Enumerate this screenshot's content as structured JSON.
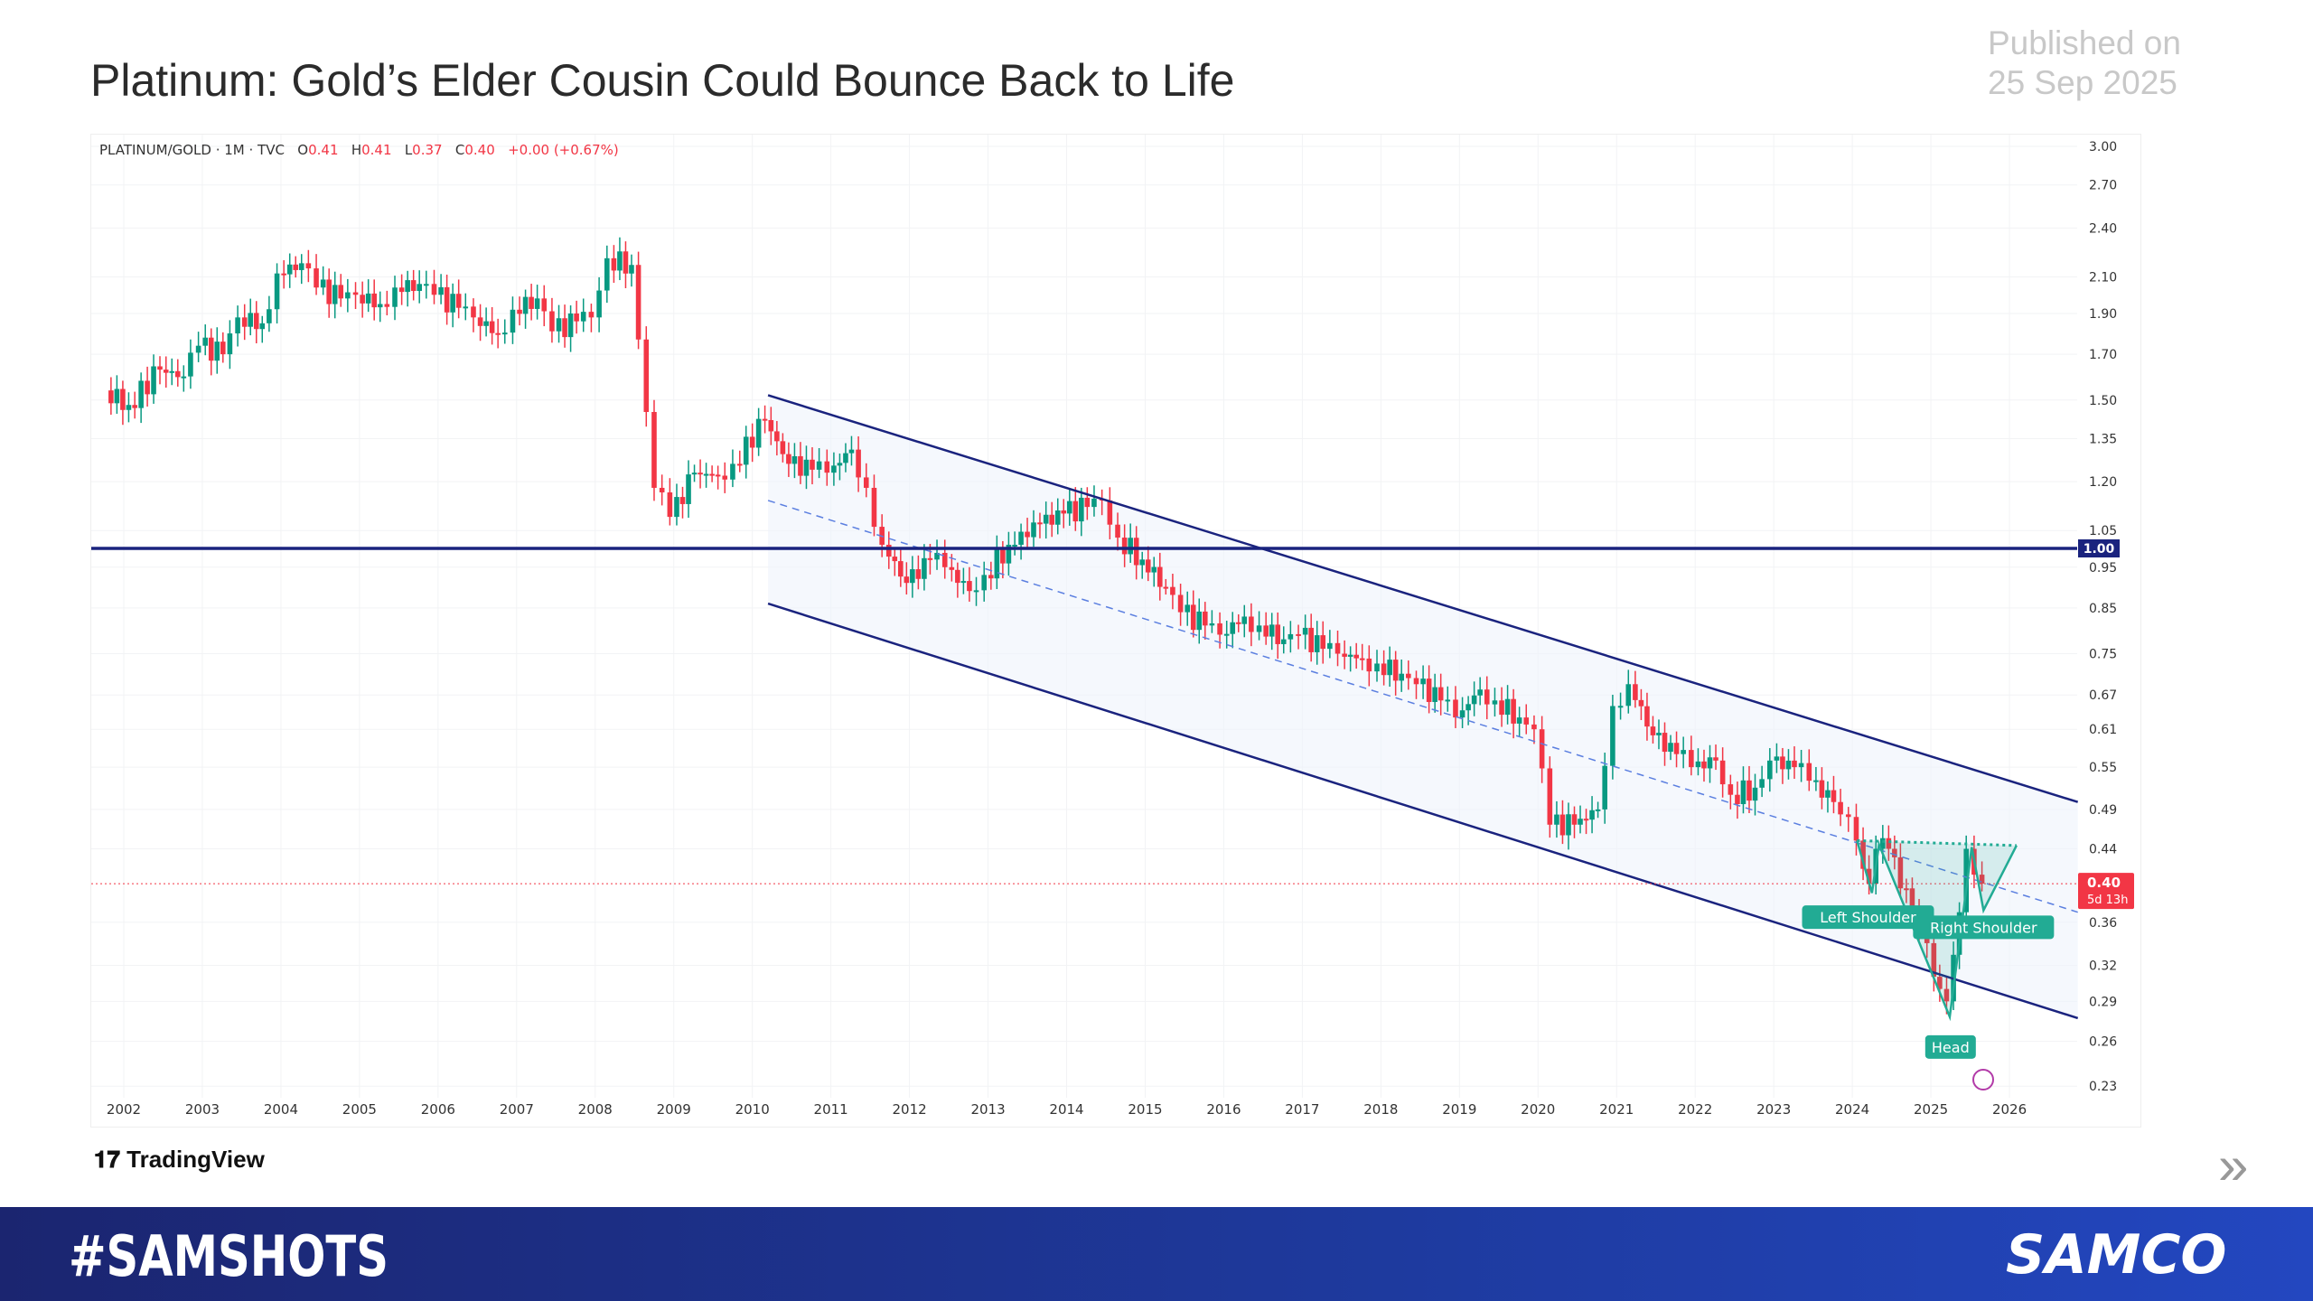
{
  "header": {
    "title": "Platinum: Gold’s Elder Cousin Could Bounce Back to Life",
    "published_line1": "Published on",
    "published_line2": "25 Sep 2025"
  },
  "legend": {
    "symbol": "PLATINUM/GOLD · 1M · TVC",
    "o_label": "O",
    "o": "0.41",
    "h_label": "H",
    "h": "0.41",
    "l_label": "L",
    "l": "0.37",
    "c_label": "C",
    "c": "0.40",
    "change": "+0.00 (+0.67%)"
  },
  "footer": {
    "tradingview": "TradingView",
    "hashtag": "#SAMSHOTS",
    "brand": "SAMCO"
  },
  "colors": {
    "up": "#089981",
    "down": "#f23645",
    "channel": "#1a237e",
    "midline": "#5b7fe0",
    "pattern": "#22ab94",
    "price_label": "#f23645"
  },
  "chart_data": {
    "type": "candlestick",
    "yscale": "log",
    "ylim": [
      0.23,
      3.0
    ],
    "xlim": [
      2001.6,
      2027.0
    ],
    "y_ticks": [
      "3.00",
      "2.70",
      "2.40",
      "2.10",
      "1.90",
      "1.70",
      "1.50",
      "1.35",
      "1.20",
      "1.05",
      "0.95",
      "0.85",
      "0.75",
      "0.67",
      "0.61",
      "0.55",
      "0.49",
      "0.44",
      "0.36",
      "0.32",
      "0.29",
      "0.26",
      "0.23"
    ],
    "x_ticks": [
      "2002",
      "2003",
      "2004",
      "2005",
      "2006",
      "2007",
      "2008",
      "2009",
      "2010",
      "2011",
      "2012",
      "2013",
      "2014",
      "2015",
      "2016",
      "2017",
      "2018",
      "2019",
      "2020",
      "2021",
      "2022",
      "2023",
      "2024",
      "2025",
      "2026"
    ],
    "grid": true,
    "closes": [
      [
        2001.8,
        1.54
      ],
      [
        2002.1,
        1.48
      ],
      [
        2002.5,
        1.63
      ],
      [
        2002.8,
        1.6
      ],
      [
        2003.0,
        1.74
      ],
      [
        2003.3,
        1.7
      ],
      [
        2003.5,
        1.88
      ],
      [
        2003.8,
        1.85
      ],
      [
        2004.0,
        2.12
      ],
      [
        2004.3,
        2.18
      ],
      [
        2004.5,
        2.04
      ],
      [
        2004.8,
        1.98
      ],
      [
        2005.0,
        2.0
      ],
      [
        2005.3,
        1.95
      ],
      [
        2005.5,
        2.04
      ],
      [
        2005.8,
        2.06
      ],
      [
        2006.0,
        2.0
      ],
      [
        2006.3,
        1.93
      ],
      [
        2006.5,
        1.88
      ],
      [
        2006.8,
        1.8
      ],
      [
        2007.0,
        1.92
      ],
      [
        2007.3,
        1.98
      ],
      [
        2007.5,
        1.81
      ],
      [
        2007.8,
        1.86
      ],
      [
        2008.0,
        1.88
      ],
      [
        2008.2,
        2.21
      ],
      [
        2008.5,
        2.17
      ],
      [
        2008.6,
        1.77
      ],
      [
        2008.8,
        1.18
      ],
      [
        2009.0,
        1.09
      ],
      [
        2009.3,
        1.23
      ],
      [
        2009.6,
        1.22
      ],
      [
        2009.8,
        1.26
      ],
      [
        2010.2,
        1.42
      ],
      [
        2010.5,
        1.26
      ],
      [
        2010.8,
        1.24
      ],
      [
        2011.0,
        1.23
      ],
      [
        2011.3,
        1.31
      ],
      [
        2011.5,
        1.18
      ],
      [
        2011.7,
        1.01
      ],
      [
        2012.0,
        0.91
      ],
      [
        2012.3,
        0.97
      ],
      [
        2012.5,
        0.95
      ],
      [
        2012.8,
        0.89
      ],
      [
        2013.0,
        0.93
      ],
      [
        2013.3,
        1.01
      ],
      [
        2013.7,
        1.07
      ],
      [
        2014.0,
        1.1
      ],
      [
        2014.3,
        1.12
      ],
      [
        2014.5,
        1.14
      ],
      [
        2014.7,
        1.03
      ],
      [
        2015.0,
        0.97
      ],
      [
        2015.3,
        0.9
      ],
      [
        2015.5,
        0.84
      ],
      [
        2015.8,
        0.81
      ],
      [
        2016.0,
        0.79
      ],
      [
        2016.3,
        0.83
      ],
      [
        2016.5,
        0.81
      ],
      [
        2016.8,
        0.78
      ],
      [
        2017.0,
        0.79
      ],
      [
        2017.3,
        0.76
      ],
      [
        2017.5,
        0.75
      ],
      [
        2017.8,
        0.74
      ],
      [
        2018.0,
        0.73
      ],
      [
        2018.3,
        0.71
      ],
      [
        2018.5,
        0.69
      ],
      [
        2018.8,
        0.66
      ],
      [
        2019.0,
        0.63
      ],
      [
        2019.3,
        0.68
      ],
      [
        2019.5,
        0.66
      ],
      [
        2019.8,
        0.63
      ],
      [
        2020.0,
        0.61
      ],
      [
        2020.2,
        0.47
      ],
      [
        2020.5,
        0.47
      ],
      [
        2020.8,
        0.49
      ],
      [
        2021.0,
        0.65
      ],
      [
        2021.2,
        0.69
      ],
      [
        2021.5,
        0.6
      ],
      [
        2021.8,
        0.57
      ],
      [
        2022.0,
        0.55
      ],
      [
        2022.3,
        0.56
      ],
      [
        2022.5,
        0.51
      ],
      [
        2022.8,
        0.52
      ],
      [
        2023.0,
        0.56
      ],
      [
        2023.3,
        0.55
      ],
      [
        2023.5,
        0.53
      ],
      [
        2023.8,
        0.5
      ],
      [
        2024.0,
        0.48
      ],
      [
        2024.1,
        0.45
      ],
      [
        2024.25,
        0.4
      ],
      [
        2024.35,
        0.44
      ],
      [
        2024.5,
        0.44
      ],
      [
        2024.8,
        0.37
      ],
      [
        2025.0,
        0.34
      ],
      [
        2025.15,
        0.3
      ],
      [
        2025.25,
        0.29
      ],
      [
        2025.4,
        0.37
      ],
      [
        2025.5,
        0.44
      ],
      [
        2025.6,
        0.41
      ],
      [
        2025.7,
        0.4
      ]
    ],
    "current_price": {
      "value": "0.40",
      "countdown": "5d 13h"
    },
    "horizontal_level": {
      "value": 1.0,
      "label": "1.00"
    },
    "channel": {
      "start": 2010.2,
      "end": 2026.87,
      "upper": [
        1.52,
        0.5
      ],
      "mid": [
        1.14,
        0.37
      ],
      "lower": [
        0.86,
        0.277
      ]
    },
    "head_and_shoulders": {
      "points": [
        [
          2024.06,
          0.45
        ],
        [
          2024.25,
          0.39
        ],
        [
          2024.34,
          0.445
        ],
        [
          2025.24,
          0.278
        ],
        [
          2025.52,
          0.442
        ],
        [
          2025.67,
          0.372
        ],
        [
          2026.09,
          0.444
        ]
      ],
      "neckline": [
        [
          2024.06,
          0.45
        ],
        [
          2026.09,
          0.444
        ]
      ],
      "labels": [
        {
          "text": "Left Shoulder",
          "x": 2024.2,
          "y": 0.365
        },
        {
          "text": "Head",
          "x": 2025.25,
          "y": 0.256
        },
        {
          "text": "Right Shoulder",
          "x": 2025.67,
          "y": 0.355
        }
      ]
    }
  }
}
